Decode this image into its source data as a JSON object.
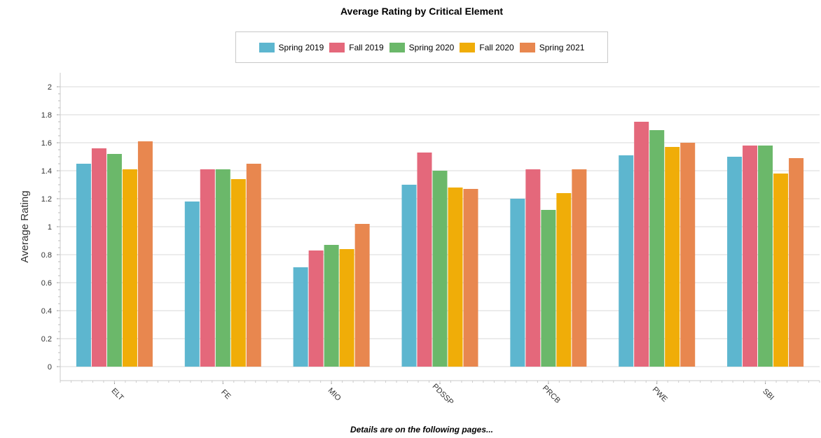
{
  "chart_data": {
    "type": "bar",
    "title": "Average Rating by Critical Element",
    "ylabel": "Average Rating",
    "xlabel": "",
    "ylim": [
      0,
      2
    ],
    "yticks": [
      "0",
      "0.2",
      "0.4",
      "0.6",
      "0.8",
      "1",
      "1.2",
      "1.4",
      "1.6",
      "1.8",
      "2"
    ],
    "grid": true,
    "legend_position": "top",
    "categories": [
      "ELT",
      "FE",
      "MIO",
      "PDSSP",
      "PRCB",
      "PWE",
      "SBI"
    ],
    "series": [
      {
        "name": "Spring 2019",
        "color": "#5db6cf",
        "values": [
          1.45,
          1.18,
          0.71,
          1.3,
          1.2,
          1.51,
          1.5
        ]
      },
      {
        "name": "Fall 2019",
        "color": "#e4687b",
        "values": [
          1.56,
          1.41,
          0.83,
          1.53,
          1.41,
          1.75,
          1.58
        ]
      },
      {
        "name": "Spring 2020",
        "color": "#6bb86a",
        "values": [
          1.52,
          1.41,
          0.87,
          1.4,
          1.12,
          1.69,
          1.58
        ]
      },
      {
        "name": "Fall 2020",
        "color": "#f0ad08",
        "values": [
          1.41,
          1.34,
          0.84,
          1.28,
          1.24,
          1.57,
          1.38
        ]
      },
      {
        "name": "Spring 2021",
        "color": "#e8874f",
        "values": [
          1.61,
          1.45,
          1.02,
          1.27,
          1.41,
          1.6,
          1.49
        ]
      }
    ]
  },
  "footer_note": "Details are on the following pages..."
}
